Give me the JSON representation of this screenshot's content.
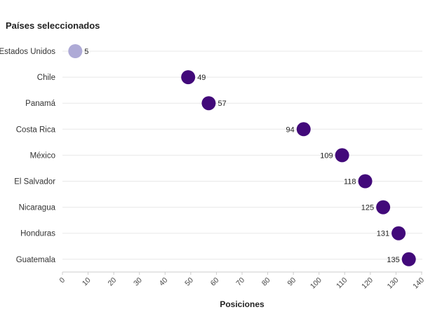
{
  "chart_data": {
    "type": "scatter",
    "title": "Países seleccionados",
    "xlabel": "Posiciones",
    "ylabel": "",
    "xlim": [
      0,
      140
    ],
    "x_ticks": [
      0,
      10,
      20,
      30,
      40,
      50,
      60,
      70,
      80,
      90,
      100,
      110,
      120,
      130,
      140
    ],
    "categories": [
      "Estados Unidos",
      "Chile",
      "Panamá",
      "Costa Rica",
      "México",
      "El Salvador",
      "Nicaragua",
      "Honduras",
      "Guatemala"
    ],
    "values": [
      5,
      49,
      57,
      94,
      109,
      118,
      125,
      131,
      135
    ],
    "highlight": [
      "Estados Unidos"
    ],
    "colors": {
      "primary": "#42097a",
      "highlight": "#aeaad6"
    },
    "grid": true
  }
}
